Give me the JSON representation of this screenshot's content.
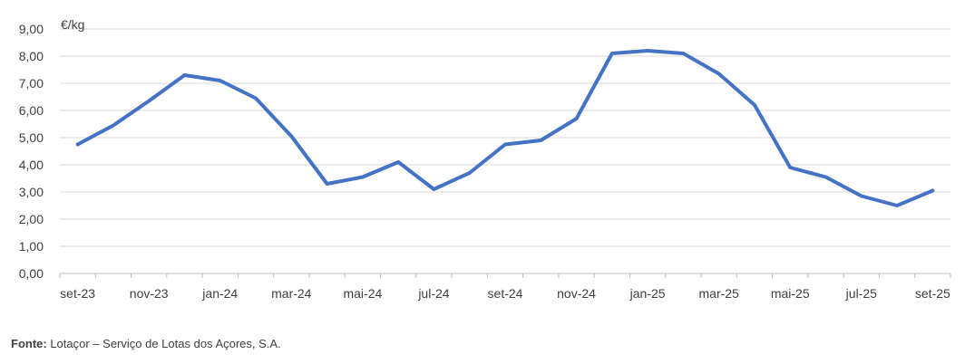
{
  "chart_data": {
    "type": "line",
    "title": "",
    "unit_label": "€/kg",
    "xlabel": "",
    "ylabel": "",
    "ylim": [
      0,
      9
    ],
    "y_ticks": [
      "0,00",
      "1,00",
      "2,00",
      "3,00",
      "4,00",
      "5,00",
      "6,00",
      "7,00",
      "8,00",
      "9,00"
    ],
    "grid": true,
    "legend": "none",
    "categories": [
      "set-23",
      "out-23",
      "nov-23",
      "dez-23",
      "jan-24",
      "fev-24",
      "mar-24",
      "abr-24",
      "mai-24",
      "jun-24",
      "jul-24",
      "ago-24",
      "set-24",
      "out-24",
      "nov-24",
      "dez-24",
      "jan-25",
      "fev-25",
      "mar-25",
      "abr-25",
      "mai-25",
      "jun-25",
      "jul-25",
      "ago-25",
      "set-25"
    ],
    "x_tick_labels": [
      "set-23",
      "",
      "nov-23",
      "",
      "jan-24",
      "",
      "mar-24",
      "",
      "mai-24",
      "",
      "jul-24",
      "",
      "set-24",
      "",
      "nov-24",
      "",
      "jan-25",
      "",
      "mar-25",
      "",
      "mai-25",
      "",
      "jul-25",
      "",
      "set-25"
    ],
    "series": [
      {
        "name": "",
        "color": "#4472C4",
        "values": [
          4.75,
          5.45,
          6.35,
          7.3,
          7.1,
          6.45,
          5.05,
          3.3,
          3.55,
          4.1,
          3.1,
          3.7,
          4.75,
          4.9,
          5.7,
          8.1,
          8.2,
          8.1,
          7.35,
          6.2,
          3.9,
          3.55,
          2.85,
          2.5,
          3.05
        ]
      }
    ],
    "colors": {
      "grid": "#d9d9d9",
      "axis": "#bfbfbf",
      "text": "#404040"
    }
  },
  "source": {
    "label": "Fonte:",
    "text": " Lotaçor – Serviço de Lotas dos Açores, S.A."
  }
}
